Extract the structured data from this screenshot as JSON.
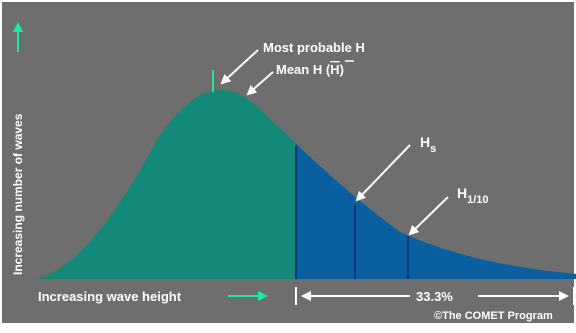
{
  "labels": {
    "most_probable": "Most probable H",
    "mean_prefix": "Mean H (",
    "mean_symbol": "H",
    "mean_suffix": ")",
    "hs_main": "H",
    "hs_sub": "s",
    "h110_main": "H",
    "h110_sub": "1/10",
    "y_axis": "Increasing number of waves",
    "x_axis": "Increasing wave height",
    "percent": "33.3%",
    "credit": "©The COMET Program"
  },
  "colors": {
    "background": "#6e6e6e",
    "curve_fill": "#138a77",
    "tail_fill": "#0a5fa0",
    "divider": "#0a2f6a",
    "axis_accent": "#1ee8a6",
    "text": "#ffffff"
  }
}
